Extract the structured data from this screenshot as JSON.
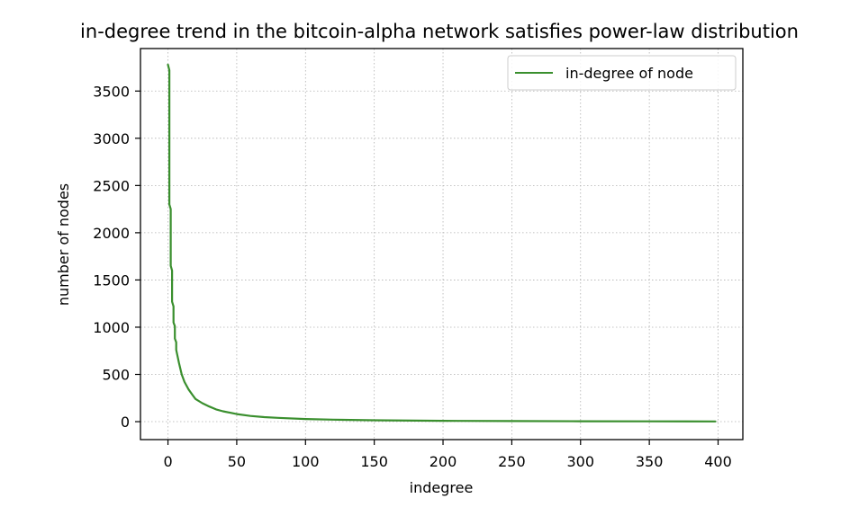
{
  "chart_data": {
    "type": "line",
    "title": "in-degree trend in the bitcoin-alpha network satisfies power-law distribution",
    "xlabel": "indegree",
    "ylabel": "number of nodes",
    "xlim": [
      -20,
      418
    ],
    "ylim": [
      -190,
      3950
    ],
    "x_ticks": [
      0,
      50,
      100,
      150,
      200,
      250,
      300,
      350,
      400
    ],
    "x_tick_labels": [
      "0",
      "50",
      "100",
      "150",
      "200",
      "250",
      "300",
      "350",
      "400"
    ],
    "y_ticks": [
      0,
      500,
      1000,
      1500,
      2000,
      2500,
      3000,
      3500
    ],
    "y_tick_labels": [
      "0",
      "500",
      "1000",
      "1500",
      "2000",
      "2500",
      "3000",
      "3500"
    ],
    "grid": true,
    "legend_position": "top-right",
    "series": [
      {
        "name": "in-degree of node",
        "color": "#3a8f2e",
        "x": [
          0,
          1,
          1,
          2,
          2,
          3,
          3,
          4,
          4,
          5,
          5,
          6,
          6,
          8,
          10,
          12,
          15,
          18,
          20,
          25,
          30,
          35,
          40,
          50,
          60,
          70,
          80,
          100,
          120,
          150,
          200,
          250,
          300,
          350,
          398
        ],
        "y": [
          3780,
          3720,
          2300,
          2250,
          1650,
          1600,
          1270,
          1220,
          1050,
          1010,
          880,
          840,
          760,
          620,
          500,
          420,
          340,
          280,
          240,
          195,
          160,
          130,
          110,
          80,
          60,
          48,
          40,
          28,
          21,
          15,
          9,
          6,
          4,
          3,
          2
        ]
      }
    ]
  }
}
